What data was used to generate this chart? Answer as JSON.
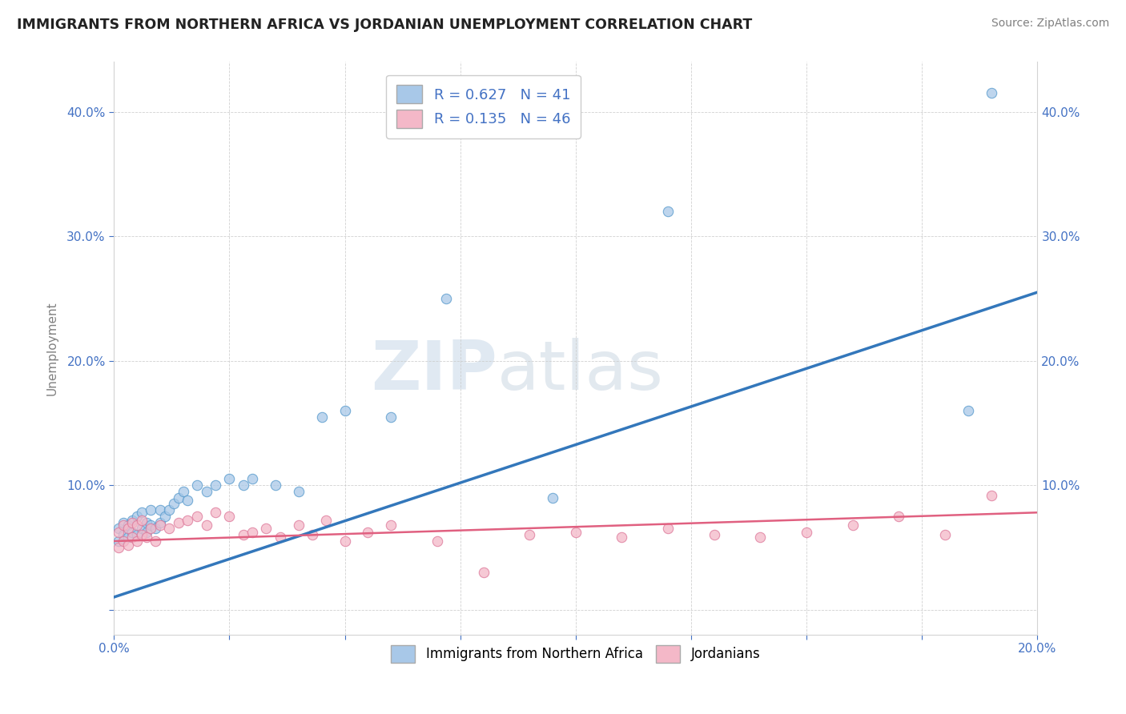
{
  "title": "IMMIGRANTS FROM NORTHERN AFRICA VS JORDANIAN UNEMPLOYMENT CORRELATION CHART",
  "source": "Source: ZipAtlas.com",
  "ylabel": "Unemployment",
  "xlim": [
    0.0,
    0.2
  ],
  "ylim": [
    -0.02,
    0.44
  ],
  "yticks": [
    0.0,
    0.1,
    0.2,
    0.3,
    0.4
  ],
  "ytick_labels": [
    "",
    "10.0%",
    "20.0%",
    "30.0%",
    "40.0%"
  ],
  "xticks": [
    0.0,
    0.025,
    0.05,
    0.075,
    0.1,
    0.125,
    0.15,
    0.175,
    0.2
  ],
  "xtick_labels": [
    "0.0%",
    "",
    "",
    "",
    "",
    "",
    "",
    "",
    "20.0%"
  ],
  "legend_R1": "0.627",
  "legend_N1": "41",
  "legend_R2": "0.135",
  "legend_N2": "46",
  "blue_color": "#a8c8e8",
  "pink_color": "#f4b8c8",
  "blue_line_color": "#3377bb",
  "pink_line_color": "#e06080",
  "watermark_zip": "ZIP",
  "watermark_atlas": "atlas",
  "blue_scatter_x": [
    0.001,
    0.001,
    0.002,
    0.002,
    0.003,
    0.003,
    0.004,
    0.004,
    0.005,
    0.005,
    0.006,
    0.006,
    0.007,
    0.007,
    0.008,
    0.008,
    0.009,
    0.01,
    0.01,
    0.011,
    0.012,
    0.013,
    0.014,
    0.015,
    0.016,
    0.018,
    0.02,
    0.022,
    0.025,
    0.028,
    0.03,
    0.035,
    0.04,
    0.045,
    0.05,
    0.06,
    0.072,
    0.095,
    0.12,
    0.185,
    0.19
  ],
  "blue_scatter_y": [
    0.055,
    0.065,
    0.06,
    0.07,
    0.058,
    0.068,
    0.062,
    0.072,
    0.06,
    0.075,
    0.065,
    0.078,
    0.062,
    0.07,
    0.068,
    0.08,
    0.065,
    0.07,
    0.08,
    0.075,
    0.08,
    0.085,
    0.09,
    0.095,
    0.088,
    0.1,
    0.095,
    0.1,
    0.105,
    0.1,
    0.105,
    0.1,
    0.095,
    0.155,
    0.16,
    0.155,
    0.25,
    0.09,
    0.32,
    0.16,
    0.415
  ],
  "pink_scatter_x": [
    0.001,
    0.001,
    0.002,
    0.002,
    0.003,
    0.003,
    0.004,
    0.004,
    0.005,
    0.005,
    0.006,
    0.006,
    0.007,
    0.008,
    0.009,
    0.01,
    0.012,
    0.014,
    0.016,
    0.018,
    0.02,
    0.022,
    0.025,
    0.028,
    0.03,
    0.033,
    0.036,
    0.04,
    0.043,
    0.046,
    0.05,
    0.055,
    0.06,
    0.07,
    0.08,
    0.09,
    0.1,
    0.11,
    0.12,
    0.13,
    0.14,
    0.15,
    0.16,
    0.17,
    0.18,
    0.19
  ],
  "pink_scatter_y": [
    0.05,
    0.062,
    0.055,
    0.068,
    0.052,
    0.065,
    0.058,
    0.07,
    0.055,
    0.068,
    0.06,
    0.072,
    0.058,
    0.065,
    0.055,
    0.068,
    0.065,
    0.07,
    0.072,
    0.075,
    0.068,
    0.078,
    0.075,
    0.06,
    0.062,
    0.065,
    0.058,
    0.068,
    0.06,
    0.072,
    0.055,
    0.062,
    0.068,
    0.055,
    0.03,
    0.06,
    0.062,
    0.058,
    0.065,
    0.06,
    0.058,
    0.062,
    0.068,
    0.075,
    0.06,
    0.092
  ],
  "blue_line_x": [
    0.0,
    0.2
  ],
  "blue_line_y": [
    0.01,
    0.255
  ],
  "pink_line_x": [
    0.0,
    0.2
  ],
  "pink_line_y": [
    0.055,
    0.078
  ]
}
